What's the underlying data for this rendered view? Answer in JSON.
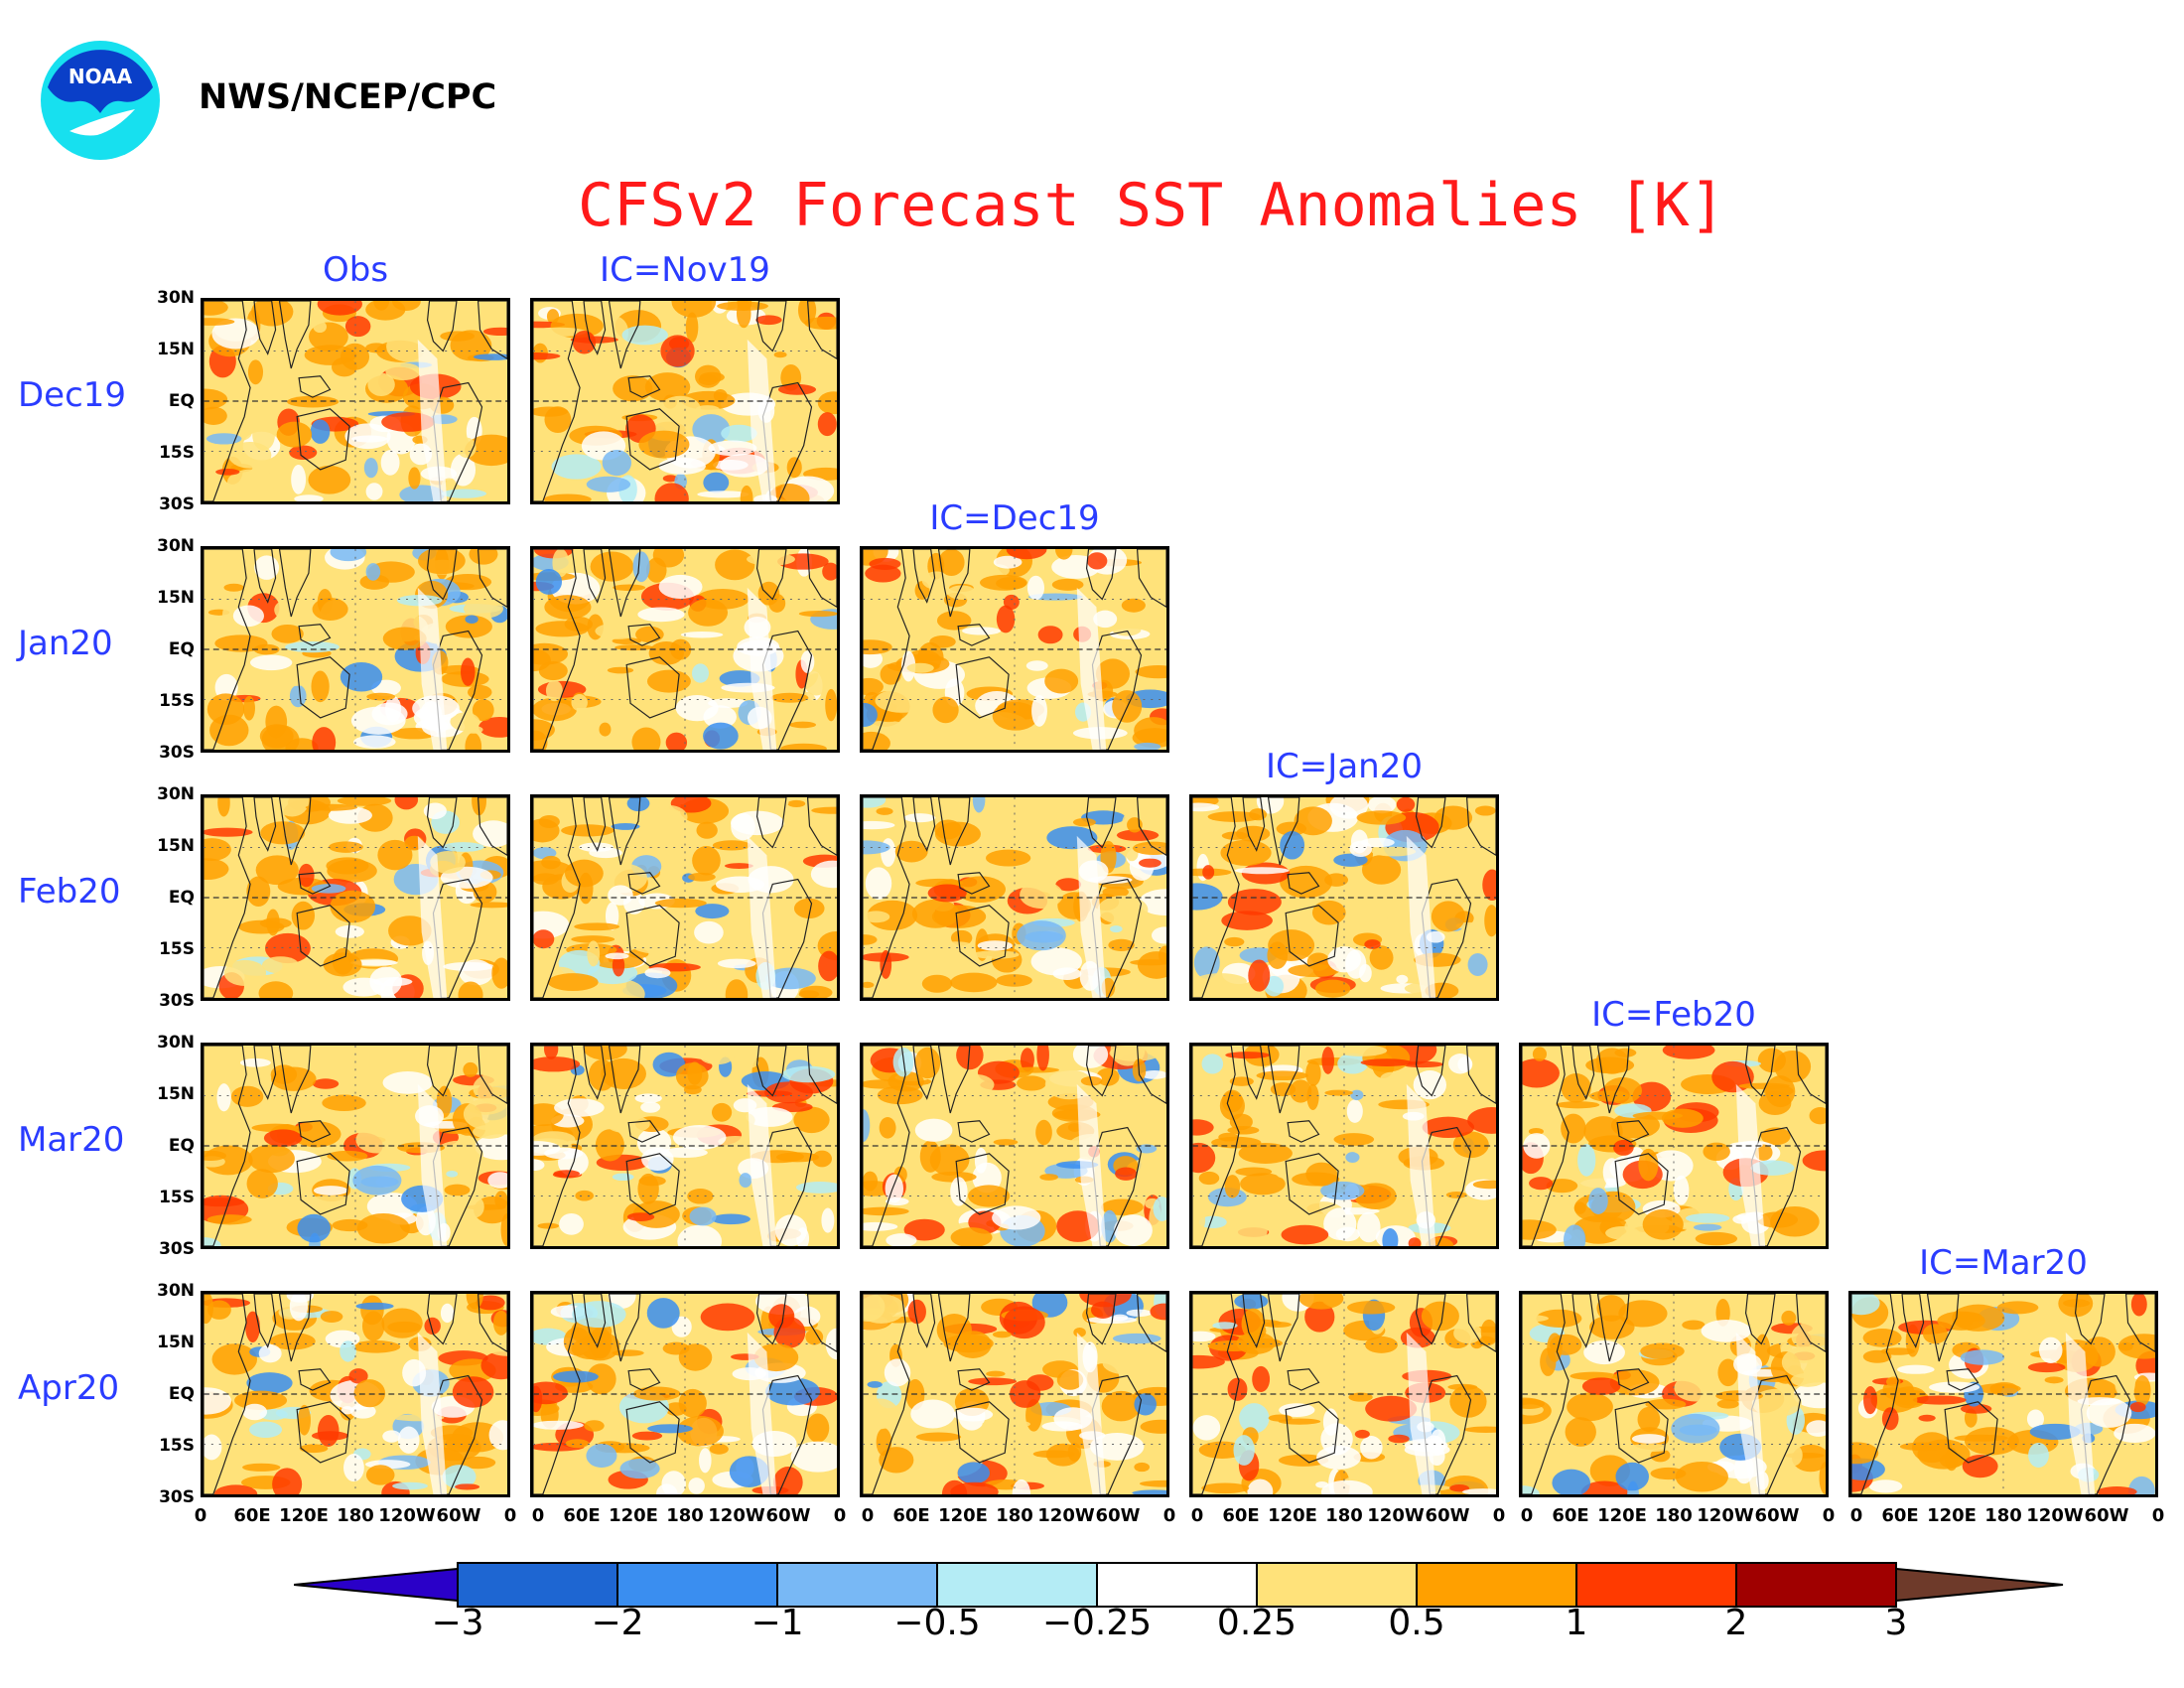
{
  "header": {
    "logo_text": "NOAA",
    "agency": "NWS/NCEP/CPC",
    "title": "CFSv2 Forecast SST Anomalies [K]"
  },
  "columns": [
    "Obs",
    "IC=Nov19",
    "IC=Dec19",
    "IC=Jan20",
    "IC=Feb20",
    "IC=Mar20"
  ],
  "rows": [
    "Dec19",
    "Jan20",
    "Feb20",
    "Mar20",
    "Apr20"
  ],
  "lat_labels": [
    "30N",
    "15N",
    "EQ",
    "15S",
    "30S"
  ],
  "lon_labels": [
    "0",
    "60E",
    "120E",
    "180",
    "120W",
    "60W",
    "0"
  ],
  "colorbar": {
    "labels": [
      "−3",
      "−2",
      "−1",
      "−0.5",
      "−0.25",
      "0.25",
      "0.5",
      "1",
      "2",
      "3"
    ],
    "colors": [
      "#2a00c8",
      "#1e66d2",
      "#3a8ef0",
      "#78b8f5",
      "#b4ecf5",
      "#ffffff",
      "#ffe27a",
      "#ffa000",
      "#ff3a00",
      "#a00000",
      "#6e3a2a"
    ]
  },
  "panels": [
    {
      "row": "Dec19",
      "column": "Obs"
    },
    {
      "row": "Dec19",
      "column": "IC=Nov19"
    },
    {
      "row": "Jan20",
      "column": "Obs"
    },
    {
      "row": "Jan20",
      "column": "IC=Nov19"
    },
    {
      "row": "Jan20",
      "column": "IC=Dec19"
    },
    {
      "row": "Feb20",
      "column": "Obs"
    },
    {
      "row": "Feb20",
      "column": "IC=Nov19"
    },
    {
      "row": "Feb20",
      "column": "IC=Dec19"
    },
    {
      "row": "Feb20",
      "column": "IC=Jan20"
    },
    {
      "row": "Mar20",
      "column": "Obs"
    },
    {
      "row": "Mar20",
      "column": "IC=Nov19"
    },
    {
      "row": "Mar20",
      "column": "IC=Dec19"
    },
    {
      "row": "Mar20",
      "column": "IC=Jan20"
    },
    {
      "row": "Mar20",
      "column": "IC=Feb20"
    },
    {
      "row": "Apr20",
      "column": "Obs"
    },
    {
      "row": "Apr20",
      "column": "IC=Nov19"
    },
    {
      "row": "Apr20",
      "column": "IC=Dec19"
    },
    {
      "row": "Apr20",
      "column": "IC=Jan20"
    },
    {
      "row": "Apr20",
      "column": "IC=Feb20"
    },
    {
      "row": "Apr20",
      "column": "IC=Mar20"
    }
  ]
}
